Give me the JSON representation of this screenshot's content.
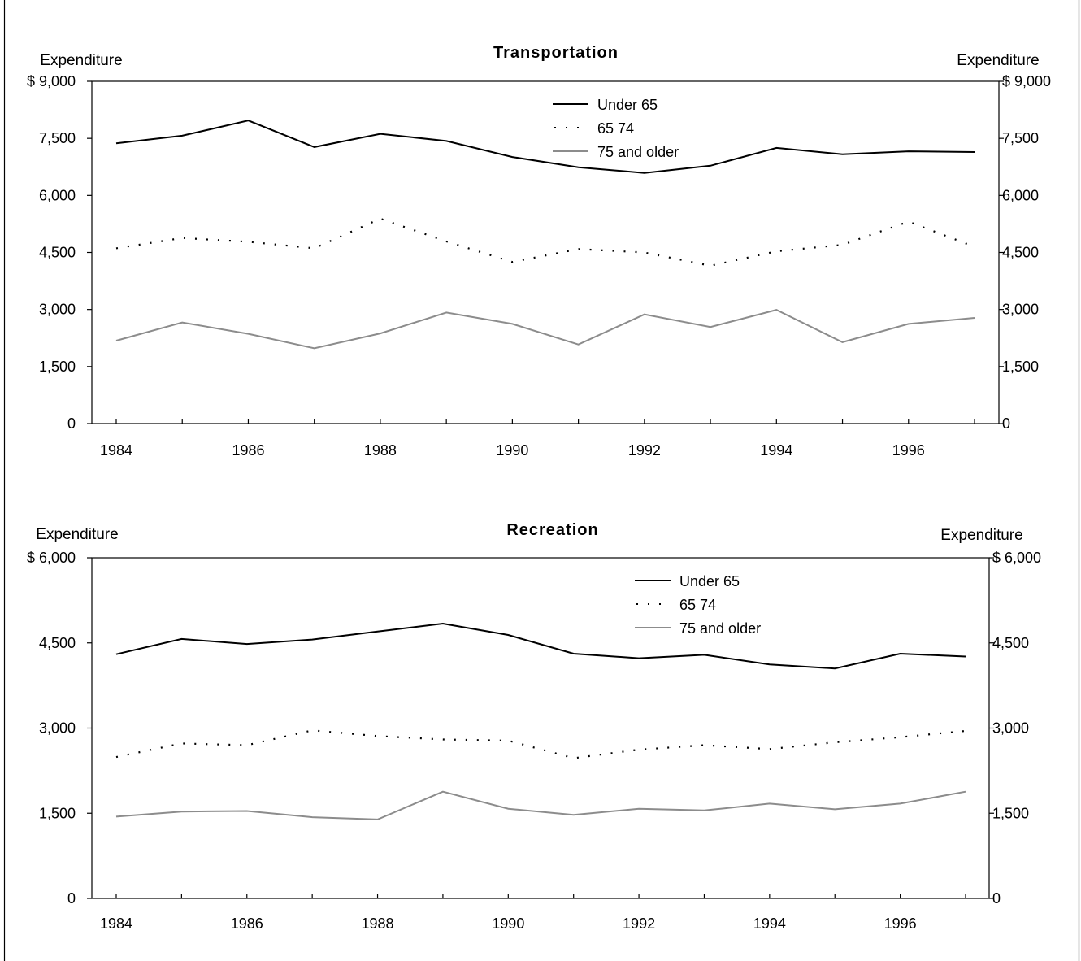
{
  "chart_data": [
    {
      "type": "line",
      "title": "Transportation",
      "ylabel_left": "Expenditure",
      "ylabel_right": "Expenditure",
      "ylim": [
        0,
        9000
      ],
      "yticks": [
        "$ 9,000",
        "7,500",
        "6,000",
        "4,500",
        "3,000",
        "1,500",
        "0"
      ],
      "yticks_right": [
        "$ 9,000",
        "7,500",
        "6,000",
        "4,500",
        "3,000",
        "1,500",
        "0"
      ],
      "x": [
        1984,
        1985,
        1986,
        1987,
        1988,
        1989,
        1990,
        1991,
        1992,
        1993,
        1994,
        1995,
        1996,
        1997
      ],
      "xticks": [
        "1984",
        "1986",
        "1988",
        "1990",
        "1992",
        "1994",
        "1996"
      ],
      "grid": false,
      "legend_position": "top-center",
      "series": [
        {
          "name": "Under 65",
          "style": "solid",
          "color": "#000000",
          "values": [
            7370,
            7570,
            7970,
            7270,
            7620,
            7430,
            7010,
            6740,
            6590,
            6780,
            7250,
            7080,
            7160,
            7140
          ]
        },
        {
          "name": "65 74",
          "style": "dotted",
          "color": "#000000",
          "values": [
            4610,
            4880,
            4780,
            4610,
            5390,
            4790,
            4250,
            4590,
            4500,
            4150,
            4530,
            4700,
            5310,
            4650
          ]
        },
        {
          "name": "75 and older",
          "style": "solid",
          "color": "#8c8c8c",
          "values": [
            2180,
            2660,
            2360,
            1980,
            2370,
            2920,
            2620,
            2080,
            2870,
            2540,
            2990,
            2140,
            2620,
            2780
          ]
        }
      ]
    },
    {
      "type": "line",
      "title": "Recreation",
      "ylabel_left": "Expenditure",
      "ylabel_right": "Expenditure",
      "ylim": [
        0,
        6000
      ],
      "yticks": [
        "$ 6,000",
        "4,500",
        "3,000",
        "1,500",
        "0"
      ],
      "yticks_right": [
        "$ 6,000",
        "4,500",
        "3,000",
        "1,500",
        "0"
      ],
      "x": [
        1984,
        1985,
        1986,
        1987,
        1988,
        1989,
        1990,
        1991,
        1992,
        1993,
        1994,
        1995,
        1996,
        1997
      ],
      "xticks": [
        "1984",
        "1986",
        "1988",
        "1990",
        "1992",
        "1994",
        "1996"
      ],
      "grid": false,
      "legend_position": "top-right",
      "series": [
        {
          "name": "Under 65",
          "style": "solid",
          "color": "#000000",
          "values": [
            4300,
            4570,
            4480,
            4560,
            4700,
            4840,
            4640,
            4310,
            4230,
            4290,
            4120,
            4050,
            4310,
            4260
          ]
        },
        {
          "name": "65 74",
          "style": "dotted",
          "color": "#000000",
          "values": [
            2490,
            2730,
            2700,
            2960,
            2860,
            2800,
            2780,
            2470,
            2620,
            2700,
            2630,
            2750,
            2840,
            2950
          ]
        },
        {
          "name": "75 and older",
          "style": "solid",
          "color": "#8c8c8c",
          "values": [
            1440,
            1530,
            1540,
            1430,
            1390,
            1880,
            1580,
            1470,
            1580,
            1550,
            1670,
            1570,
            1670,
            1880
          ]
        }
      ]
    }
  ]
}
